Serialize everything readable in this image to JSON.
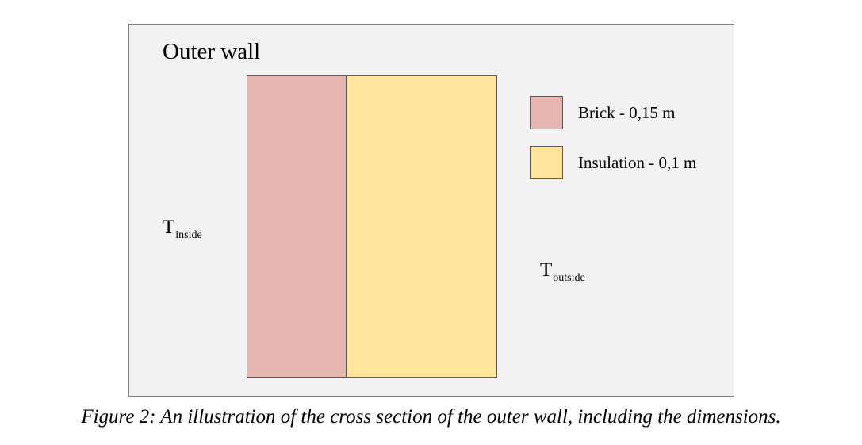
{
  "diagram": {
    "title": "Outer wall",
    "layers": [
      {
        "name": "brick",
        "color": "#e6b7b0"
      },
      {
        "name": "insulation",
        "color": "#ffe49c"
      }
    ],
    "legend": [
      {
        "label": "Brick - 0,15 m",
        "color": "#e6b7b0"
      },
      {
        "label": "Insulation - 0,1 m",
        "color": "#ffe49c"
      }
    ],
    "inside_temp": {
      "symbol": "T",
      "subscript": "inside"
    },
    "outside_temp": {
      "symbol": "T",
      "subscript": "outside"
    }
  },
  "caption": "Figure 2: An illustration of the cross section of the outer wall, including the dimensions."
}
